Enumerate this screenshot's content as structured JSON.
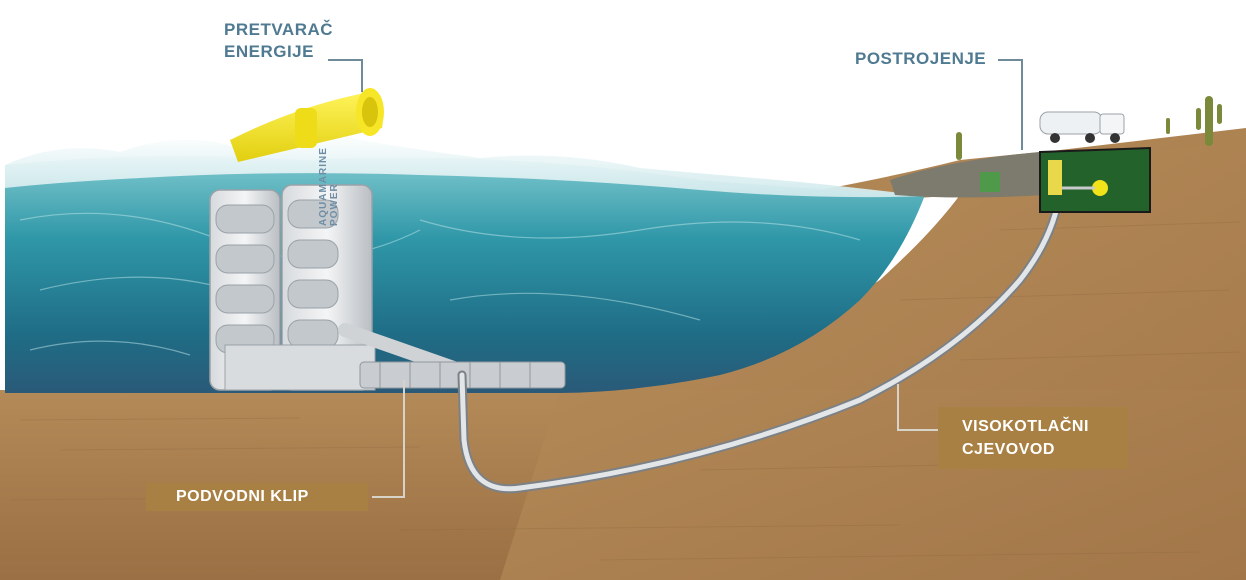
{
  "labels": {
    "energy_converter": [
      "PRETVARAČ",
      "ENERGIJE"
    ],
    "plant": "POSTROJENJE",
    "subsea_piston": "PODVODNI KLIP",
    "high_pressure_pipe": [
      "VISOKOTLAČNI",
      "CJEVOVOD"
    ]
  },
  "device_brand": [
    "AQUAMARINE",
    "POWER"
  ],
  "colors": {
    "label_text": "#4f7a91",
    "label_box": "#a88042",
    "sea_floor": "#a87e4f",
    "water": "#2f8fa0",
    "converter_flap": "#f2e21a",
    "pipe": "#d7dadc"
  }
}
